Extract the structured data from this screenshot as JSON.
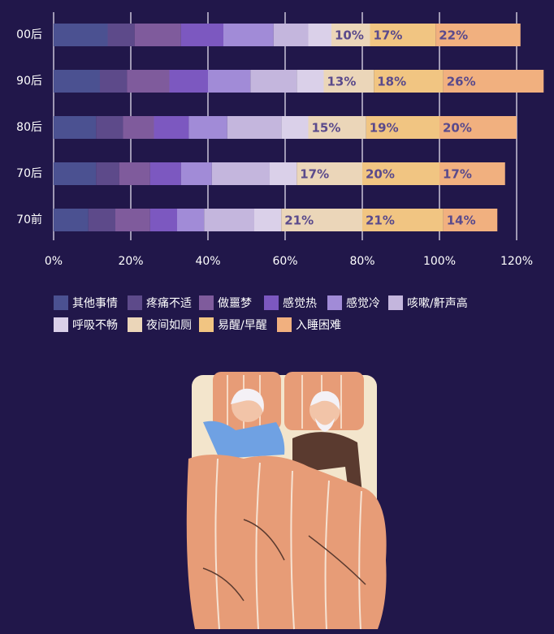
{
  "chart_data": {
    "type": "stacked-bar-horizontal",
    "categories": [
      "00后",
      "90后",
      "80后",
      "70后",
      "70前"
    ],
    "xlim": [
      0,
      120
    ],
    "xticks": [
      {
        "value": 0,
        "label": "0%"
      },
      {
        "value": 20,
        "label": "20%"
      },
      {
        "value": 40,
        "label": "40%"
      },
      {
        "value": 60,
        "label": "60%"
      },
      {
        "value": 80,
        "label": "80%"
      },
      {
        "value": 100,
        "label": "100%"
      },
      {
        "value": 120,
        "label": "120%"
      }
    ],
    "grid": true,
    "series": [
      {
        "name": "其他事情",
        "color": "#4b5191",
        "values": [
          14,
          12,
          11,
          11,
          9
        ]
      },
      {
        "name": "疼痛不适",
        "color": "#5d4a8a",
        "values": [
          7,
          7,
          7,
          6,
          7
        ]
      },
      {
        "name": "做噩梦",
        "color": "#7f5b9c",
        "values": [
          12,
          11,
          8,
          8,
          9
        ]
      },
      {
        "name": "感觉热",
        "color": "#7c58c0",
        "values": [
          11,
          10,
          9,
          8,
          7
        ]
      },
      {
        "name": "感觉冷",
        "color": "#a18bd7",
        "values": [
          13,
          11,
          10,
          8,
          7
        ]
      },
      {
        "name": "咳嗽/鼾声高",
        "color": "#c4b6dd",
        "values": [
          9,
          12,
          14,
          15,
          13
        ]
      },
      {
        "name": "呼吸不畅",
        "color": "#dad0e9",
        "values": [
          6,
          7,
          7,
          7,
          7
        ]
      },
      {
        "name": "夜间如厕",
        "color": "#ebd6b9",
        "values": [
          10,
          13,
          15,
          17,
          21
        ],
        "value_labels": [
          "10%",
          "13%",
          "15%",
          "17%",
          "21%"
        ]
      },
      {
        "name": "易醒/早醒",
        "color": "#f1c582",
        "values": [
          17,
          18,
          19,
          20,
          21
        ],
        "value_labels": [
          "17%",
          "18%",
          "19%",
          "20%",
          "21%"
        ]
      },
      {
        "name": "入睡困难",
        "color": "#f1b07f",
        "values": [
          22,
          26,
          20,
          17,
          14
        ],
        "value_labels": [
          "22%",
          "26%",
          "20%",
          "17%",
          "14%"
        ]
      }
    ]
  }
}
